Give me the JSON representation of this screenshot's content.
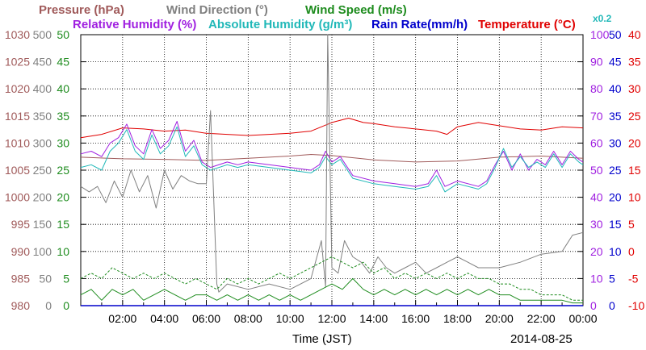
{
  "chart_data": {
    "type": "line",
    "legend": {
      "pressure": "Pressure (hPa)",
      "wind_direction": "Wind Direction (°)",
      "wind_speed": "Wind Speed (m/s)",
      "rh": "Relative Humidity (%)",
      "ah": "Absolute Humidity (g/m³)",
      "ah_scale": "x0.2",
      "rain": "Rain Rate(mm/h)",
      "temp": "Temperature (°C)"
    },
    "xlabel": "Time (JST)",
    "date": "2014-08-25",
    "x_ticks": [
      "02:00",
      "04:00",
      "06:00",
      "08:00",
      "10:00",
      "12:00",
      "14:00",
      "16:00",
      "18:00",
      "20:00",
      "22:00",
      "00:00"
    ],
    "xlim": [
      0,
      24
    ],
    "axes": {
      "pressure": {
        "ticks": [
          "1030",
          "1025",
          "1020",
          "1015",
          "1010",
          "1005",
          "1000",
          "995",
          "990",
          "985",
          "980"
        ],
        "range": [
          980,
          1030
        ],
        "color": "#a05a5a"
      },
      "wind_direction": {
        "ticks": [
          "500",
          "450",
          "400",
          "350",
          "300",
          "250",
          "200",
          "150",
          "100",
          "50",
          "0"
        ],
        "range": [
          0,
          500
        ],
        "color": "#808080"
      },
      "wind_speed": {
        "ticks": [
          "50",
          "45",
          "40",
          "35",
          "30",
          "25",
          "20",
          "15",
          "10",
          "5",
          "0"
        ],
        "range": [
          0,
          50
        ],
        "color": "#1e8c1e"
      },
      "rh": {
        "ticks": [
          "100",
          "90",
          "80",
          "70",
          "60",
          "50",
          "40",
          "30",
          "20",
          "10",
          "0"
        ],
        "range": [
          0,
          100
        ],
        "color": "#a020e0"
      },
      "rain": {
        "ticks": [
          "50",
          "45",
          "40",
          "35",
          "30",
          "25",
          "20",
          "15",
          "10",
          "5",
          "0"
        ],
        "range": [
          0,
          50
        ],
        "color": "#0000cc"
      },
      "temp": {
        "ticks": [
          "40",
          "35",
          "30",
          "25",
          "20",
          "15",
          "10",
          "5",
          "0",
          "-5",
          "-10"
        ],
        "range": [
          -10,
          40
        ],
        "color": "#e00000"
      }
    },
    "series": [
      {
        "key": "temp",
        "name": "Temperature (°C)",
        "color": "#e00000",
        "scale": "temp",
        "x": [
          0,
          1,
          2,
          3,
          4,
          5,
          6,
          7,
          8,
          9,
          10,
          11,
          12,
          12.8,
          13.5,
          14,
          15,
          16,
          17,
          17.5,
          18,
          19,
          20,
          21,
          22,
          23,
          24
        ],
        "y": [
          21,
          21.6,
          22.8,
          22.6,
          22.2,
          22.4,
          21.8,
          21.6,
          21.4,
          21.6,
          21.8,
          22.2,
          23.8,
          24.6,
          23.8,
          23.6,
          23,
          22.6,
          22.2,
          21.6,
          23,
          23.8,
          23.2,
          22.6,
          22.4,
          23,
          22.8
        ]
      },
      {
        "key": "pressure",
        "name": "Pressure (hPa)",
        "color": "#a05a5a",
        "scale": "pressure",
        "x": [
          0,
          2,
          4,
          6,
          8,
          10,
          11,
          12,
          14,
          16,
          18,
          20,
          22,
          24
        ],
        "y": [
          1007.4,
          1007.1,
          1007,
          1006.8,
          1007.2,
          1007.6,
          1007.9,
          1007.7,
          1006.9,
          1006.5,
          1006.7,
          1007.4,
          1007.6,
          1007.2
        ]
      },
      {
        "key": "rh",
        "name": "Relative Humidity (%)",
        "color": "#a020e0",
        "scale": "rh",
        "x": [
          0,
          0.5,
          1,
          1.4,
          1.8,
          2.2,
          2.6,
          3,
          3.4,
          3.8,
          4.2,
          4.6,
          5,
          5.4,
          5.8,
          6.2,
          7,
          7.5,
          8,
          9,
          10,
          11,
          11.4,
          11.7,
          12,
          12.4,
          13,
          14,
          15,
          16,
          16.6,
          17,
          17.4,
          18,
          19,
          19.4,
          19.8,
          20.2,
          20.6,
          21,
          21.4,
          21.8,
          22.2,
          22.6,
          23,
          23.4,
          23.8,
          24
        ],
        "y": [
          56,
          57,
          55,
          60,
          62,
          67,
          59,
          56,
          65,
          58,
          61,
          68,
          57,
          61,
          53,
          51,
          53,
          52,
          53,
          52,
          51,
          50,
          52,
          57,
          53,
          55,
          48,
          46,
          45,
          44,
          45,
          50,
          44,
          46,
          44,
          46,
          52,
          57,
          50,
          56,
          50,
          54,
          52,
          57,
          52,
          57,
          54,
          53
        ]
      },
      {
        "key": "ah",
        "name": "Absolute Humidity (g/m³)",
        "color": "#20b8b8",
        "scale": "rh",
        "x": [
          0,
          0.5,
          1,
          1.4,
          1.8,
          2.2,
          2.6,
          3,
          3.4,
          3.8,
          4.2,
          4.6,
          5,
          5.4,
          5.8,
          6.2,
          7,
          7.5,
          8,
          9,
          10,
          11,
          11.4,
          11.7,
          12,
          12.4,
          13,
          14,
          15,
          16,
          16.6,
          17,
          17.4,
          18,
          19,
          19.4,
          19.8,
          20.2,
          20.6,
          21,
          21.4,
          21.8,
          22.2,
          22.6,
          23,
          23.4,
          23.8,
          24
        ],
        "y": [
          51,
          52,
          50,
          57,
          60,
          65,
          57,
          54,
          63,
          56,
          59,
          66,
          55,
          59,
          52,
          50,
          52,
          51,
          52,
          51,
          50,
          49,
          51,
          55,
          52,
          54,
          47,
          45,
          44,
          43,
          44,
          48,
          42,
          45,
          43,
          45,
          51,
          58,
          51,
          55,
          51,
          53,
          51,
          56,
          51,
          56,
          53,
          52
        ]
      },
      {
        "key": "wind_direction",
        "name": "Wind Direction (°)",
        "color": "#808080",
        "scale": "wind_direction",
        "x": [
          0,
          0.4,
          0.8,
          1.2,
          1.6,
          2,
          2.4,
          2.8,
          3.2,
          3.6,
          4,
          4.4,
          4.8,
          5.2,
          5.6,
          6,
          6.2,
          6.5,
          6.6,
          7,
          8,
          9,
          10,
          11,
          11.5,
          11.7,
          11.8,
          12,
          12.3,
          12.6,
          13,
          13.4,
          13.8,
          14.2,
          14.6,
          15,
          15.5,
          16,
          16.5,
          17,
          17.5,
          18,
          18.5,
          19,
          20,
          21,
          22,
          23,
          23.5,
          24
        ],
        "y": [
          220,
          210,
          220,
          190,
          230,
          200,
          250,
          210,
          240,
          180,
          250,
          215,
          240,
          230,
          225,
          225,
          360,
          40,
          25,
          40,
          30,
          40,
          30,
          50,
          120,
          35,
          500,
          70,
          60,
          120,
          90,
          80,
          60,
          90,
          70,
          60,
          70,
          80,
          60,
          70,
          80,
          90,
          80,
          70,
          70,
          80,
          95,
          100,
          130,
          135
        ]
      },
      {
        "key": "wind_speed",
        "name": "Wind Speed (m/s)",
        "color": "#1e8c1e",
        "scale": "wind_speed",
        "x": [
          0,
          0.5,
          1,
          1.5,
          2,
          2.5,
          3,
          3.5,
          4,
          4.5,
          5,
          5.5,
          6,
          6.5,
          7,
          7.5,
          8,
          8.5,
          9,
          9.5,
          10,
          10.5,
          11,
          11.5,
          12,
          12.5,
          13,
          13.5,
          14,
          14.5,
          15,
          15.5,
          16,
          16.5,
          17,
          17.5,
          18,
          18.5,
          19,
          19.5,
          20,
          20.5,
          21,
          21.5,
          22,
          22.5,
          23,
          23.5,
          24
        ],
        "y": [
          2,
          3,
          1,
          3,
          2,
          3,
          1,
          2,
          3,
          2,
          1,
          2,
          2,
          1,
          2,
          1,
          2,
          1,
          2,
          1,
          2,
          1,
          2,
          3,
          4,
          3,
          5,
          3,
          2,
          3,
          2,
          3,
          2,
          3,
          2,
          3,
          2,
          3,
          2,
          3,
          2,
          2,
          1,
          1,
          1,
          1,
          1,
          0.5,
          0.5
        ]
      },
      {
        "key": "wind_gust",
        "name": "",
        "color": "#1e8c1e",
        "dashed": true,
        "scale": "wind_speed",
        "x": [
          0,
          0.5,
          1,
          1.5,
          2,
          2.5,
          3,
          3.5,
          4,
          4.5,
          5,
          5.5,
          6,
          6.5,
          7,
          7.5,
          8,
          8.5,
          9,
          9.5,
          10,
          10.5,
          11,
          11.5,
          12,
          12.5,
          13,
          13.5,
          14,
          14.5,
          15,
          15.5,
          16,
          16.5,
          17,
          17.5,
          18,
          18.5,
          19,
          19.5,
          20,
          20.5,
          21,
          21.5,
          22,
          22.5,
          23,
          23.5,
          24
        ],
        "y": [
          5,
          6,
          5,
          7,
          6,
          5,
          6,
          5,
          6,
          5,
          4,
          5,
          4,
          3,
          5,
          4,
          5,
          4,
          5,
          6,
          5,
          6,
          7,
          8,
          9,
          8,
          7,
          8,
          6,
          7,
          5,
          6,
          5,
          6,
          5,
          6,
          5,
          6,
          5,
          5,
          4,
          4,
          3,
          3,
          2,
          2,
          2,
          1,
          1
        ]
      }
    ]
  }
}
